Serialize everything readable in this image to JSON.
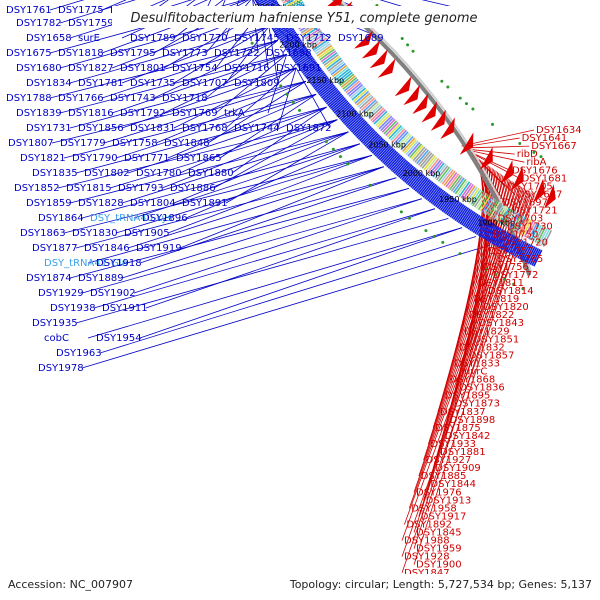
{
  "title": "Desulfitobacterium hafniense Y51, complete genome",
  "footer": {
    "accession": "Accession: NC_007907",
    "summary": "Topology: circular; Length: 5,727,534 bp; Genes: 5,137"
  },
  "ruler_labels": [
    "1900 kbp",
    "1950 kbp",
    "2000 kbp",
    "2050 kbp",
    "2100 kbp",
    "2150 kbp",
    "2200 kbp",
    "2250 kbp",
    "2300 kbp"
  ],
  "left_labels": [
    "DSY1761",
    "DSY1775",
    "DSY1749",
    "DSY1783",
    "DSY1760",
    "DSY1737",
    "DSY1685",
    "DSY1668",
    "DSY1650",
    "DSY1782",
    "DSY1759",
    "DSY1736",
    "DSY1715",
    "DSY1690",
    "DSY1677",
    "DSY1658",
    "surE",
    "DSY1789",
    "DSY1770",
    "DSY1745",
    "DSY1712",
    "DSY1689",
    "DSY1675",
    "DSY1818",
    "DSY1795",
    "DSY1773",
    "DSY1722",
    "DSY1698",
    "DSY1680",
    "DSY1827",
    "DSY1801",
    "DSY1754",
    "DSY1716",
    "DSY1691",
    "DSY1834",
    "DSY1781",
    "DSY1735",
    "DSY1707",
    "DSY1809",
    "DSY1788",
    "DSY1766",
    "DSY1743",
    "DSY1718",
    "DSY1839",
    "DSY1816",
    "DSY1792",
    "DSY1769",
    "trkA",
    "DSY1731",
    "DSY1856",
    "DSY1831",
    "DSY1768",
    "DSY1744",
    "DSY1872",
    "DSY1807",
    "DSY1779",
    "DSY1758",
    "DSY1848",
    "DSY1821",
    "DSY1790",
    "DSY1771",
    "DSY1865",
    "DSY1835",
    "DSY1802",
    "DSY1780",
    "DSY1880",
    "DSY1852",
    "DSY1815",
    "DSY1793",
    "DSY1886",
    "DSY1859",
    "DSY1828",
    "DSY1804",
    "DSY1891",
    "DSY1864",
    "DSY_tRNA40-Lys",
    "DSY1896",
    "DSY1863",
    "DSY1830",
    "DSY1905",
    "DSY1877",
    "DSY1846",
    "DSY1919",
    "DSY_tRNA41-Gln",
    "DSY1918",
    "DSY1874",
    "DSY1889",
    "DSY1929",
    "DSY1902",
    "DSY1938",
    "DSY1911",
    "DSY1935",
    "cobC",
    "DSY1954",
    "DSY1963",
    "DSY1978"
  ],
  "right_labels": [
    "DSY1634",
    "DSY1641",
    "DSY1667",
    "ribD",
    "ribA",
    "DSY1676",
    "DSY1681",
    "DSY1705",
    "DSY1687",
    "DSY1697",
    "DSY1721",
    "DSY1703",
    "DSY1730",
    "DSY1750",
    "DSY1720",
    "DSY1757",
    "DSY1765",
    "DSY1756",
    "DSY1772",
    "DSY1811",
    "DSY1814",
    "DSY1819",
    "DSY1820",
    "DSY1822",
    "DSY1843",
    "DSY1829",
    "DSY1851",
    "DSY1832",
    "DSY1857",
    "DSY1833",
    "uvrC",
    "DSY1868",
    "DSY1836",
    "DSY1895",
    "DSY1873",
    "DSY1837",
    "DSY1898",
    "DSY1875",
    "DSY1842",
    "DSY1933",
    "DSY1881",
    "DSY1927",
    "DSY1909",
    "DSY1885",
    "DSY1844",
    "DSY1976",
    "DSY1913",
    "DSY1958",
    "DSY1917",
    "DSY1892",
    "DSY1845",
    "DSY1988",
    "DSY1959",
    "DSY1928",
    "DSY1900",
    "DSY1847"
  ],
  "colors": {
    "left_label": "#0000c8",
    "trna_label": "#3aa0e8",
    "right_label": "#d00000",
    "backbone": "#808080",
    "forward_track": "#1020e0",
    "reverse_track": "#e00000",
    "gc_dots": "#2a9a2a"
  }
}
